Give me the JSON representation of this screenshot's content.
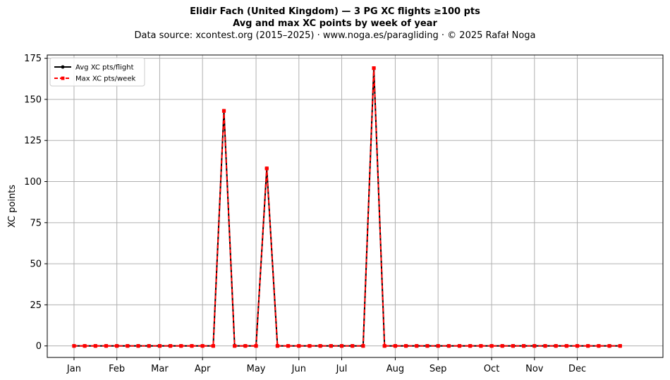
{
  "title": "Elidir Fach (United Kingdom)  —  3 PG XC flights ≥100 pts",
  "subtitle": "Avg and max XC points by week of year",
  "source": "Data source: xcontest.org (2015–2025)  ·  www.noga.es/paragliding  ·  © 2025 Rafał Noga",
  "chart_data": {
    "type": "line",
    "xlabel": "",
    "ylabel": "XC points",
    "x": [
      1,
      2,
      3,
      4,
      5,
      6,
      7,
      8,
      9,
      10,
      11,
      12,
      13,
      14,
      15,
      16,
      17,
      18,
      19,
      20,
      21,
      22,
      23,
      24,
      25,
      26,
      27,
      28,
      29,
      30,
      31,
      32,
      33,
      34,
      35,
      36,
      37,
      38,
      39,
      40,
      41,
      42,
      43,
      44,
      45,
      46,
      47,
      48,
      49,
      50,
      51,
      52
    ],
    "xlim": [
      -1.5,
      56
    ],
    "ylim": [
      -7,
      177
    ],
    "yticks": [
      0,
      25,
      50,
      75,
      100,
      125,
      150,
      175
    ],
    "xtick_labels": [
      {
        "x": 1,
        "label": "Jan"
      },
      {
        "x": 5,
        "label": "Feb"
      },
      {
        "x": 9,
        "label": "Mar"
      },
      {
        "x": 13,
        "label": "Apr"
      },
      {
        "x": 18,
        "label": "May"
      },
      {
        "x": 22,
        "label": "Jun"
      },
      {
        "x": 26,
        "label": "Jul"
      },
      {
        "x": 31,
        "label": "Aug"
      },
      {
        "x": 35,
        "label": "Sep"
      },
      {
        "x": 40,
        "label": "Oct"
      },
      {
        "x": 44,
        "label": "Nov"
      },
      {
        "x": 48,
        "label": "Dec"
      }
    ],
    "grid": true,
    "legend_position": "top-left",
    "series": [
      {
        "name": "Avg XC pts/flight",
        "color": "#000000",
        "style": "solid",
        "marker": "circle",
        "values": [
          0,
          0,
          0,
          0,
          0,
          0,
          0,
          0,
          0,
          0,
          0,
          0,
          0,
          0,
          143,
          0,
          0,
          0,
          108,
          0,
          0,
          0,
          0,
          0,
          0,
          0,
          0,
          0,
          169,
          0,
          0,
          0,
          0,
          0,
          0,
          0,
          0,
          0,
          0,
          0,
          0,
          0,
          0,
          0,
          0,
          0,
          0,
          0,
          0,
          0,
          0,
          0
        ]
      },
      {
        "name": "Max XC pts/week",
        "color": "#ff0000",
        "style": "dashed",
        "marker": "square",
        "values": [
          0,
          0,
          0,
          0,
          0,
          0,
          0,
          0,
          0,
          0,
          0,
          0,
          0,
          0,
          143,
          0,
          0,
          0,
          108,
          0,
          0,
          0,
          0,
          0,
          0,
          0,
          0,
          0,
          169,
          0,
          0,
          0,
          0,
          0,
          0,
          0,
          0,
          0,
          0,
          0,
          0,
          0,
          0,
          0,
          0,
          0,
          0,
          0,
          0,
          0,
          0,
          0
        ]
      }
    ]
  }
}
